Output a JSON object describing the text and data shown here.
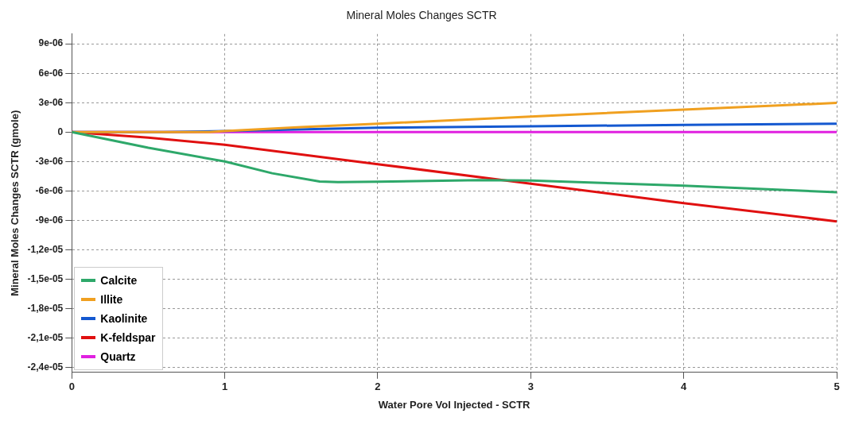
{
  "chart_data": {
    "type": "line",
    "title": "Mineral Moles Changes SCTR",
    "xlabel": "Water Pore Vol Injected - SCTR",
    "ylabel": "Mineral Moles Changes SCTR (gmole)",
    "xlim": [
      0,
      5
    ],
    "xticks": [
      0,
      1,
      2,
      3,
      4,
      5
    ],
    "ylim": [
      -2.45e-05,
      1e-05
    ],
    "yticks": [
      {
        "value": 9e-06,
        "label": "9e-06"
      },
      {
        "value": 6e-06,
        "label": "6e-06"
      },
      {
        "value": 3e-06,
        "label": "3e-06"
      },
      0,
      {
        "value": -3e-06,
        "label": "-3e-06"
      },
      {
        "value": -6e-06,
        "label": "-6e-06"
      },
      {
        "value": -9e-06,
        "label": "-9e-06"
      },
      {
        "value": -1.2e-05,
        "label": "-1,2e-05"
      },
      {
        "value": -1.5e-05,
        "label": "-1,5e-05"
      },
      {
        "value": -1.8e-05,
        "label": "-1,8e-05"
      },
      {
        "value": -2.1e-05,
        "label": "-2,1e-05"
      },
      {
        "value": -2.4e-05,
        "label": "-2,4e-05"
      }
    ],
    "grid": true,
    "legend": "bottom left",
    "marker": "none",
    "line_style": "solid",
    "series": [
      {
        "name": "Calcite",
        "color": "#2ea86a",
        "x": [
          0,
          0.5,
          1,
          1.31,
          1.62,
          1.74,
          2,
          2.67,
          3,
          4,
          5
        ],
        "values": [
          0,
          -1.6e-06,
          -3e-06,
          -4.2e-06,
          -5.04e-06,
          -5.1e-06,
          -5.05e-06,
          -4.9e-06,
          -4.94e-06,
          -5.47e-06,
          -6.13e-06
        ]
      },
      {
        "name": "Illite",
        "color": "#f0a020",
        "x": [
          0,
          0.9,
          1,
          1.5,
          2,
          3,
          4,
          5
        ],
        "values": [
          0,
          0,
          1e-07,
          5e-07,
          8.5e-07,
          1.59e-06,
          2.3e-06,
          2.97e-06
        ]
      },
      {
        "name": "Kaolinite",
        "color": "#1458d0",
        "x": [
          0,
          0.6,
          1,
          2,
          3,
          4,
          5
        ],
        "values": [
          0,
          0,
          1e-07,
          4.5e-07,
          5.8e-07,
          7.4e-07,
          8.5e-07
        ]
      },
      {
        "name": "K-feldspar",
        "color": "#e01010",
        "x": [
          0,
          0.5,
          1,
          2,
          3,
          4,
          5
        ],
        "values": [
          0,
          -5.6e-07,
          -1.3e-06,
          -3.27e-06,
          -5.26e-06,
          -7.25e-06,
          -9.1e-06
        ]
      },
      {
        "name": "Quartz",
        "color": "#e020e0",
        "x": [
          0,
          1,
          2,
          3,
          4,
          5
        ],
        "values": [
          0,
          0,
          0,
          0,
          0,
          0
        ]
      }
    ]
  }
}
